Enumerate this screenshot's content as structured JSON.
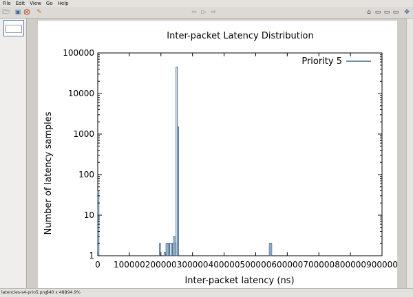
{
  "menu": {
    "file": "File",
    "edit": "Edit",
    "view": "View",
    "go": "Go",
    "help": "Help"
  },
  "toolbar": {
    "icons": [
      "open-icon",
      "save-icon",
      "close-icon",
      "edit-icon",
      "back-icon",
      "play-icon",
      "forward-icon",
      "zoom-icon",
      "fit-icon",
      "rotate-icon",
      "flip-icon",
      "fullscreen-icon"
    ]
  },
  "status": {
    "filename": "latencies-s4-prio5.png",
    "dimensions": "640 x 480",
    "zoom": "194.9%"
  },
  "chart_data": {
    "type": "bar",
    "title": "Inter-packet Latency Distribution",
    "xlabel": "Inter-packet latency (ns)",
    "ylabel": "Number of latency samples",
    "xlim": [
      0,
      900000
    ],
    "ylim": [
      1,
      100000
    ],
    "yscale": "log",
    "xticks": [
      "0",
      "100000",
      "200000",
      "300000",
      "400000",
      "500000",
      "600000",
      "700000",
      "800000",
      "900000"
    ],
    "yticks": [
      "1",
      "10",
      "100",
      "1000",
      "10000",
      "100000"
    ],
    "legend": "top-right",
    "grid": false,
    "series": [
      {
        "name": "Priority 5",
        "color": "#1f4e79",
        "points": [
          {
            "x": 0,
            "y": 40
          },
          {
            "x": 195000,
            "y": 2
          },
          {
            "x": 210000,
            "y": 1.2
          },
          {
            "x": 216000,
            "y": 2
          },
          {
            "x": 220000,
            "y": 2
          },
          {
            "x": 224000,
            "y": 2
          },
          {
            "x": 228000,
            "y": 2
          },
          {
            "x": 232000,
            "y": 2
          },
          {
            "x": 236000,
            "y": 2
          },
          {
            "x": 240000,
            "y": 3
          },
          {
            "x": 244000,
            "y": 2
          },
          {
            "x": 248000,
            "y": 45000
          },
          {
            "x": 252000,
            "y": 1500
          },
          {
            "x": 543000,
            "y": 2
          },
          {
            "x": 547000,
            "y": 2
          }
        ]
      }
    ]
  }
}
